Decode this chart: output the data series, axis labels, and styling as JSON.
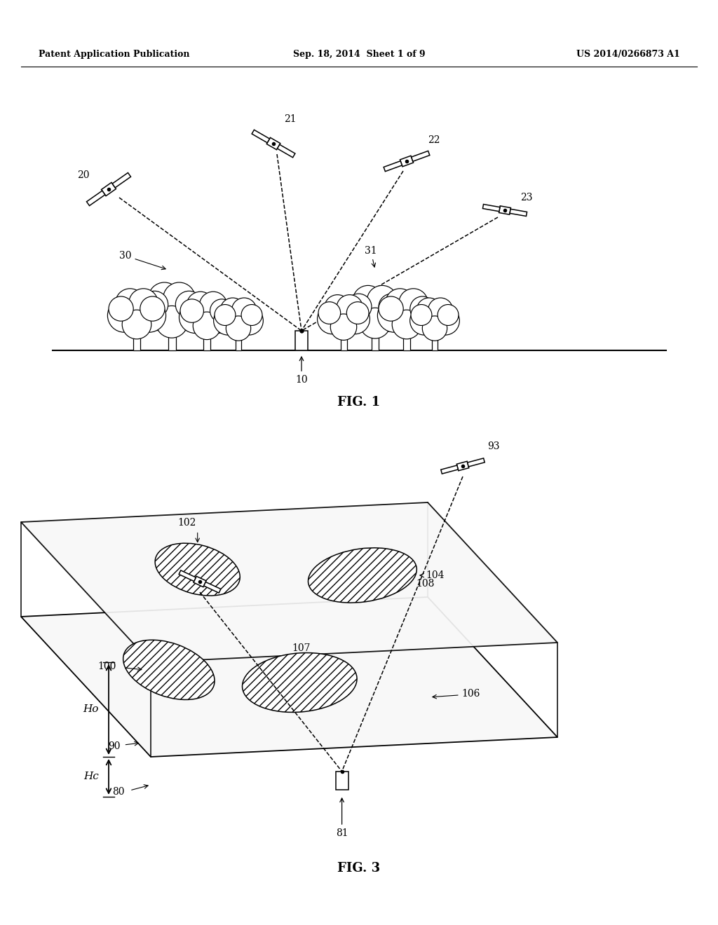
{
  "bg_color": "#ffffff",
  "header_left": "Patent Application Publication",
  "header_center": "Sep. 18, 2014  Sheet 1 of 9",
  "header_right": "US 2014/0266873 A1",
  "fig1_caption": "FIG. 1",
  "fig3_caption": "FIG. 3"
}
